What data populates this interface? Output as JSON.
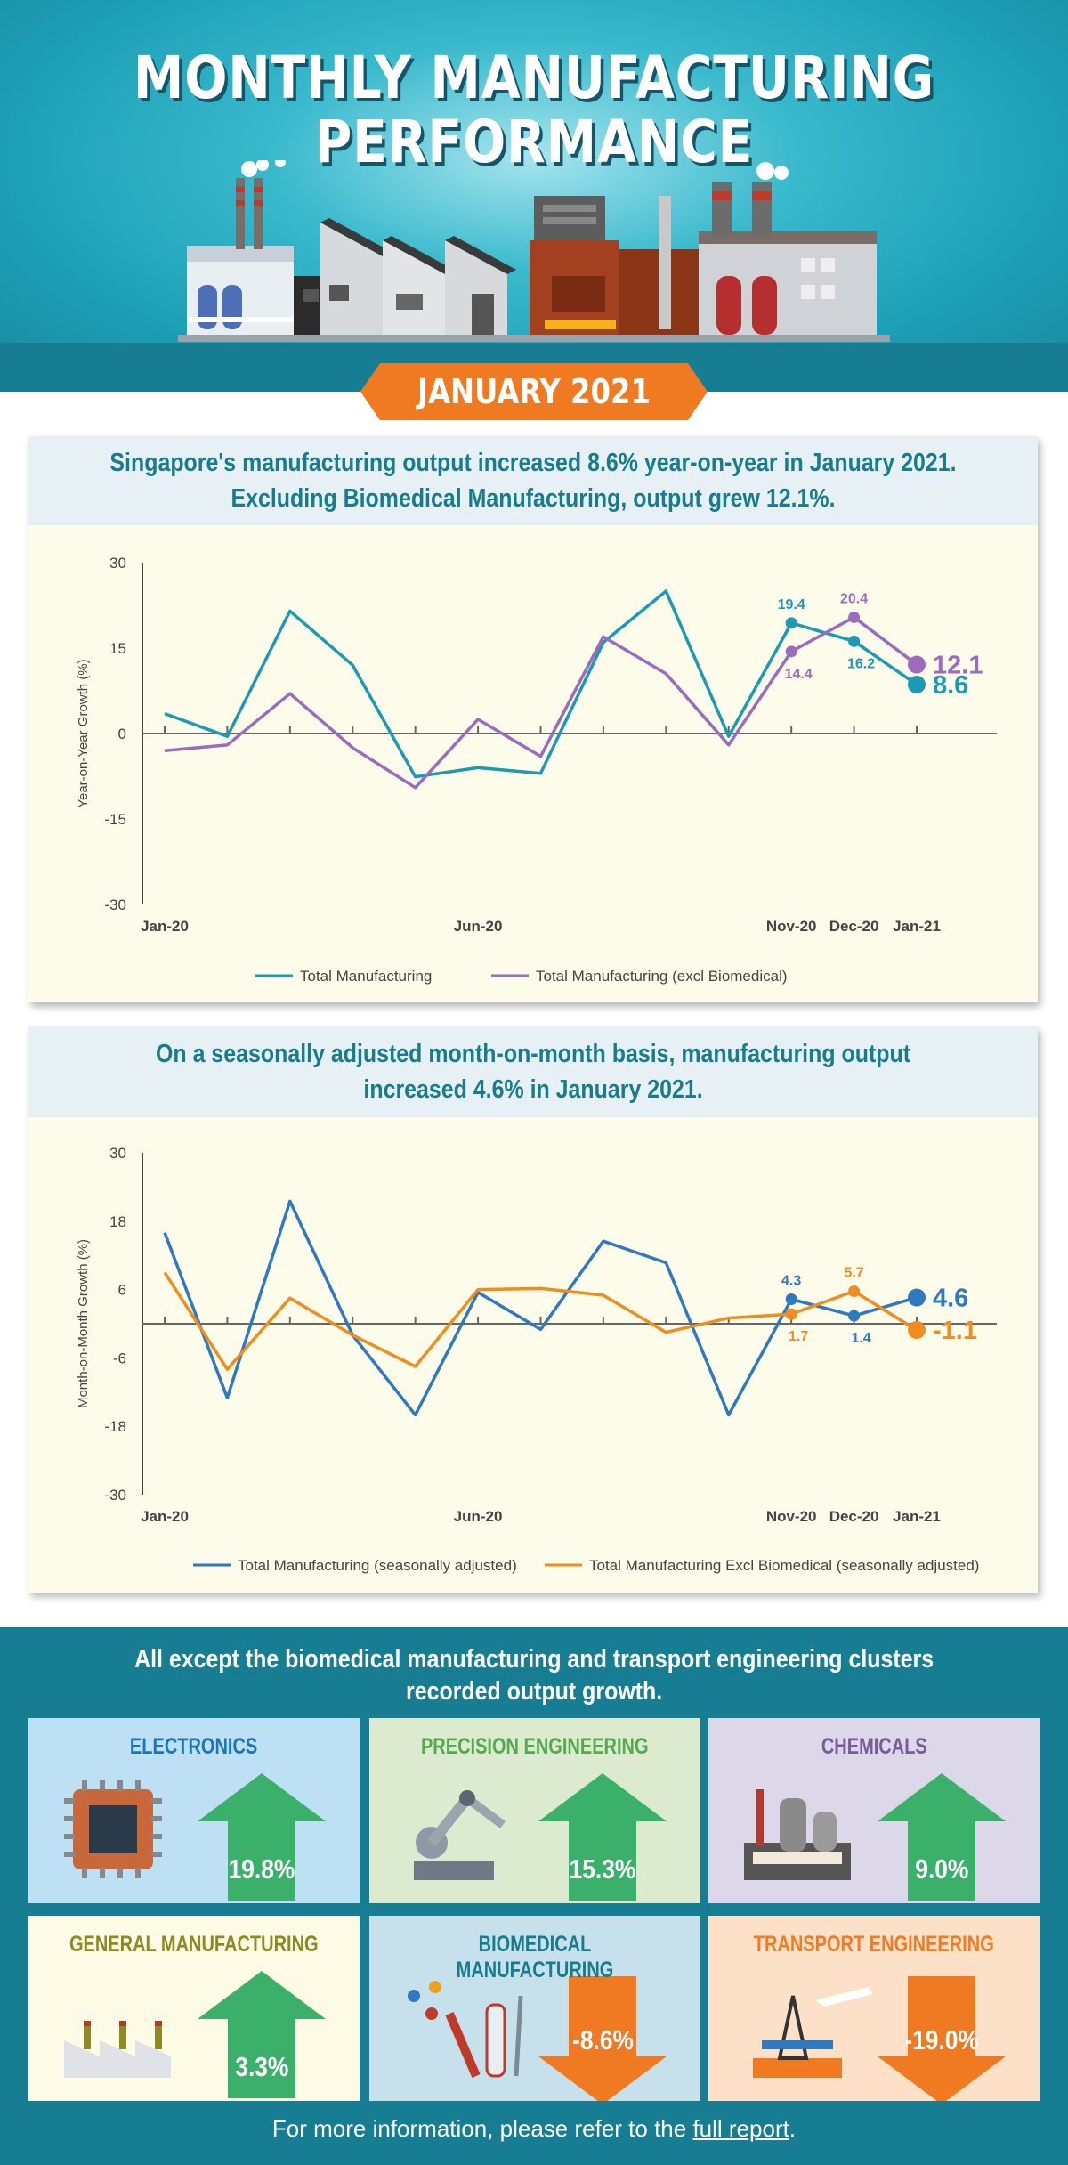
{
  "header": {
    "title_line1": "MONTHLY MANUFACTURING",
    "title_line2": "PERFORMANCE",
    "month": "JANUARY 2021"
  },
  "colors": {
    "teal": "#1a9bb3",
    "purple": "#9b6bbd",
    "blue": "#2e79c0",
    "orange": "#f08d1e",
    "up_green": "#3ab06a",
    "down_orange": "#f07a22"
  },
  "chart1": {
    "heading_line1": "Singapore's manufacturing output increased 8.6% year-on-year in January 2021.",
    "heading_line2": "Excluding Biomedical Manufacturing, output grew 12.1%.",
    "end_label_1": "8.6",
    "end_label_2": "12.1"
  },
  "chart2": {
    "heading_line1": "On a seasonally adjusted month-on-month basis, manufacturing output",
    "heading_line2": "increased 4.6% in January 2021.",
    "end_label_1": "4.6",
    "end_label_2": "-1.1"
  },
  "chart_data": [
    {
      "type": "line",
      "title": "Year-on-Year Growth",
      "ylabel": "Year-on-Year Growth (%)",
      "ylim": [
        -30,
        30
      ],
      "yticks": [
        30,
        15,
        0,
        -15,
        -30
      ],
      "x": [
        "Jan-20",
        "Feb-20",
        "Mar-20",
        "Apr-20",
        "May-20",
        "Jun-20",
        "Jul-20",
        "Aug-20",
        "Sep-20",
        "Oct-20",
        "Nov-20",
        "Dec-20",
        "Jan-21"
      ],
      "x_tick_labels": [
        "Jan-20",
        "Jun-20",
        "Nov-20",
        "Dec-20",
        "Jan-21"
      ],
      "series": [
        {
          "name": "Total Manufacturing",
          "color": "#1a9bb3",
          "values": [
            3.5,
            -0.5,
            21.5,
            12.0,
            -7.6,
            -6.0,
            -7.0,
            16.0,
            25.0,
            -0.5,
            19.4,
            16.2,
            8.6
          ]
        },
        {
          "name": "Total Manufacturing (excl Biomedical)",
          "color": "#9b6bbd",
          "values": [
            -3.0,
            -2.0,
            7.0,
            -2.5,
            -9.5,
            2.5,
            -4.0,
            17.0,
            10.5,
            -2.0,
            14.4,
            20.4,
            12.1
          ]
        }
      ],
      "point_labels": [
        {
          "series": 0,
          "index": 10,
          "text": "19.4"
        },
        {
          "series": 0,
          "index": 11,
          "text": "16.2"
        },
        {
          "series": 1,
          "index": 10,
          "text": "14.4"
        },
        {
          "series": 1,
          "index": 11,
          "text": "20.4"
        }
      ]
    },
    {
      "type": "line",
      "title": "Month-on-Month Growth",
      "ylabel": "Month-on-Month Growth (%)",
      "ylim": [
        -30,
        30
      ],
      "yticks": [
        30,
        18,
        6,
        -6,
        -18,
        -30
      ],
      "x": [
        "Jan-20",
        "Feb-20",
        "Mar-20",
        "Apr-20",
        "May-20",
        "Jun-20",
        "Jul-20",
        "Aug-20",
        "Sep-20",
        "Oct-20",
        "Nov-20",
        "Dec-20",
        "Jan-21"
      ],
      "x_tick_labels": [
        "Jan-20",
        "Jun-20",
        "Nov-20",
        "Dec-20",
        "Jan-21"
      ],
      "series": [
        {
          "name": "Total Manufacturing (seasonally adjusted)",
          "color": "#2e79c0",
          "values": [
            16.0,
            -13.0,
            21.5,
            -2.0,
            -16.0,
            5.5,
            -1.0,
            14.5,
            10.7,
            -16.0,
            4.3,
            1.4,
            4.6
          ]
        },
        {
          "name": "Total Manufacturing Excl Biomedical (seasonally adjusted)",
          "color": "#f08d1e",
          "values": [
            9.0,
            -8.0,
            4.5,
            -2.0,
            -7.5,
            6.0,
            6.2,
            5.0,
            -1.5,
            1.0,
            1.7,
            5.7,
            -1.1
          ]
        }
      ],
      "point_labels": [
        {
          "series": 0,
          "index": 10,
          "text": "4.3"
        },
        {
          "series": 0,
          "index": 11,
          "text": "1.4"
        },
        {
          "series": 1,
          "index": 10,
          "text": "1.7"
        },
        {
          "series": 1,
          "index": 11,
          "text": "5.7"
        }
      ]
    }
  ],
  "clusters": {
    "title_line1": "All except the biomedical manufacturing and transport engineering clusters",
    "title_line2": "recorded output growth.",
    "items": [
      {
        "name": "ELECTRONICS",
        "value": "19.8%",
        "growth": 19.8,
        "direction": "up",
        "bg": "#bde0f5",
        "label_color": "#1a76b8"
      },
      {
        "name": "PRECISION ENGINEERING",
        "value": "15.3%",
        "growth": 15.3,
        "direction": "up",
        "bg": "#dcebcf",
        "label_color": "#55a94e"
      },
      {
        "name": "CHEMICALS",
        "value": "9.0%",
        "growth": 9.0,
        "direction": "up",
        "bg": "#dcd7e9",
        "label_color": "#7a5a98"
      },
      {
        "name": "GENERAL MANUFACTURING",
        "value": "3.3%",
        "growth": 3.3,
        "direction": "up",
        "bg": "#fdfbe5",
        "label_color": "#8c8a20"
      },
      {
        "name": "BIOMEDICAL MANUFACTURING",
        "value": "-8.6%",
        "growth": -8.6,
        "direction": "down",
        "bg": "#c6e0ec",
        "label_color": "#177d8c"
      },
      {
        "name": "TRANSPORT ENGINEERING",
        "value": "-19.0%",
        "growth": -19.0,
        "direction": "down",
        "bg": "#fde0c8",
        "label_color": "#ef7b22"
      }
    ],
    "footer_prefix": "For more information, please refer to the ",
    "footer_link": "full report",
    "footer_suffix": "."
  }
}
